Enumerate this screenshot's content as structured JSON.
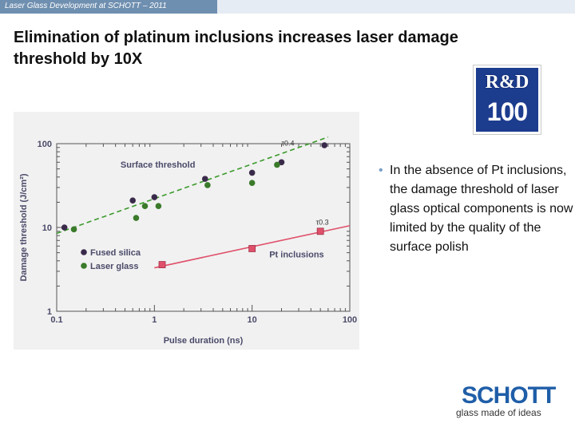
{
  "header": {
    "text": "Laser Glass Development  at SCHOTT – 2011",
    "bar_color": "#6f8fb0"
  },
  "slide": {
    "title": "Elimination of platinum inclusions increases laser damage threshold by 10X",
    "bullet_text": "In the absence of Pt inclusions, the damage threshold of laser glass optical components is now limited by the quality of the surface polish"
  },
  "logos": {
    "rd_top": "R&D",
    "rd_bottom": "100",
    "schott_word": "SCHOTT",
    "schott_tagline": "glass made of ideas"
  },
  "chart_data": {
    "type": "scatter",
    "xlabel": "Pulse duration (ns)",
    "ylabel": "Damage threshold (J/cm²)",
    "xscale": "log",
    "yscale": "log",
    "xlim": [
      0.1,
      100
    ],
    "ylim": [
      1,
      100
    ],
    "xticks": [
      "0.1",
      "1",
      "10",
      "100"
    ],
    "yticks": [
      "1",
      "10",
      "100"
    ],
    "legend_placement": "bottom-left",
    "legend": [
      {
        "label": "Fused silica",
        "color": "#3a2a4a"
      },
      {
        "label": "Laser glass",
        "color": "#3a7a2a"
      }
    ],
    "series": [
      {
        "name": "Fused silica",
        "marker": "circle",
        "color": "#3a2a4a",
        "points": [
          [
            0.12,
            10
          ],
          [
            0.6,
            21
          ],
          [
            1.0,
            23
          ],
          [
            3.3,
            38
          ],
          [
            10,
            45
          ],
          [
            20,
            60
          ],
          [
            55,
            120
          ]
        ]
      },
      {
        "name": "Laser glass",
        "marker": "circle",
        "color": "#3a7a2a",
        "points": [
          [
            0.15,
            9.5
          ],
          [
            0.65,
            13
          ],
          [
            0.8,
            18
          ],
          [
            1.1,
            18
          ],
          [
            3.5,
            32
          ],
          [
            10,
            34
          ],
          [
            18,
            56
          ]
        ]
      },
      {
        "name": "Pt inclusions",
        "marker": "square",
        "color": "#e0506a",
        "points": [
          [
            1.2,
            3.6
          ],
          [
            10,
            5.6
          ],
          [
            50,
            9.0
          ]
        ]
      }
    ],
    "fits": [
      {
        "label": "Surface threshold",
        "color": "#3a9a2a",
        "dashed": true,
        "exponent_label": "τ0.4",
        "from": [
          0.1,
          8.5
        ],
        "to": [
          60,
          120
        ]
      },
      {
        "label": "Pt inclusions",
        "color": "#e0506a",
        "dashed": false,
        "exponent_label": "τ0.3",
        "from": [
          1.0,
          3.3
        ],
        "to": [
          100,
          10.5
        ]
      }
    ],
    "annotations": [
      "Surface threshold",
      "Pt inclusions",
      "τ0.4",
      "τ0.3"
    ]
  }
}
